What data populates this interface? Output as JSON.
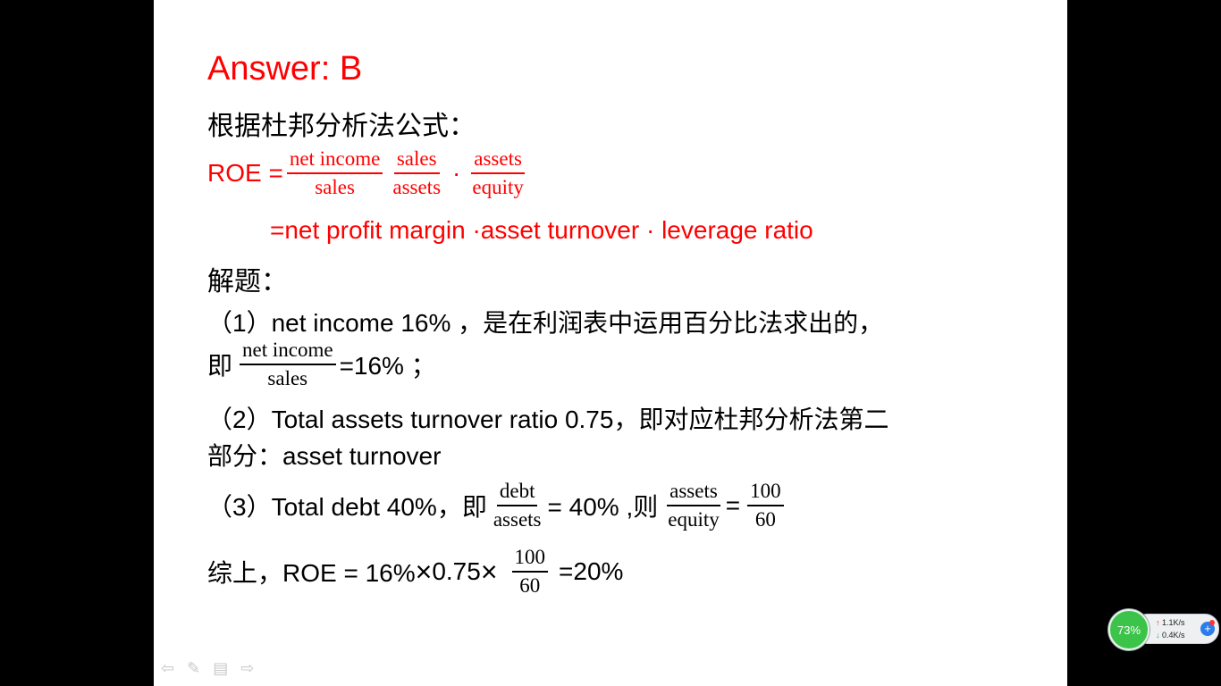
{
  "slide": {
    "answer": "Answer: B",
    "intro": "根据杜邦分析法公式：",
    "roe_label": "ROE =",
    "frac1": {
      "num": "net income",
      "den": "sales"
    },
    "frac2": {
      "num": "sales",
      "den": "assets"
    },
    "dot": "·",
    "frac3": {
      "num": "assets",
      "den": "equity"
    },
    "roe_expansion": "=net profit margin ·asset turnover · leverage ratio",
    "solve_label": "解题：",
    "step1_text": "（1）net  income 16% ，是在利润表中运用百分比法求出的，",
    "step1_prefix": "即",
    "step1_frac": {
      "num": "net income",
      "den": "sales"
    },
    "step1_suffix": "=16% ；",
    "step2_line1": "（2）Total assets turnover ratio 0.75，即对应杜邦分析法第二",
    "step2_line2": "部分：asset turnover",
    "step3_prefix": "（3）Total debt 40%，即",
    "step3_frac1": {
      "num": "debt",
      "den": "assets"
    },
    "step3_mid": "= 40% ,则",
    "step3_frac2": {
      "num": "assets",
      "den": "equity"
    },
    "step3_eq": "=",
    "step3_frac3": {
      "num": "100",
      "den": "60"
    },
    "summary_prefix": "综上，ROE = 16% ",
    "times": "×",
    "summary_mid": " 0.75 ",
    "summary_frac": {
      "num": "100",
      "den": "60"
    },
    "summary_result": "=20%"
  },
  "controls": {
    "prev_icon": "arrow-left-icon",
    "pen_icon": "pen-icon",
    "menu_icon": "menu-icon",
    "next_icon": "arrow-right-icon"
  },
  "net_widget": {
    "usage": "73%",
    "upload": "1.1K/s",
    "download": "0.4K/s"
  }
}
